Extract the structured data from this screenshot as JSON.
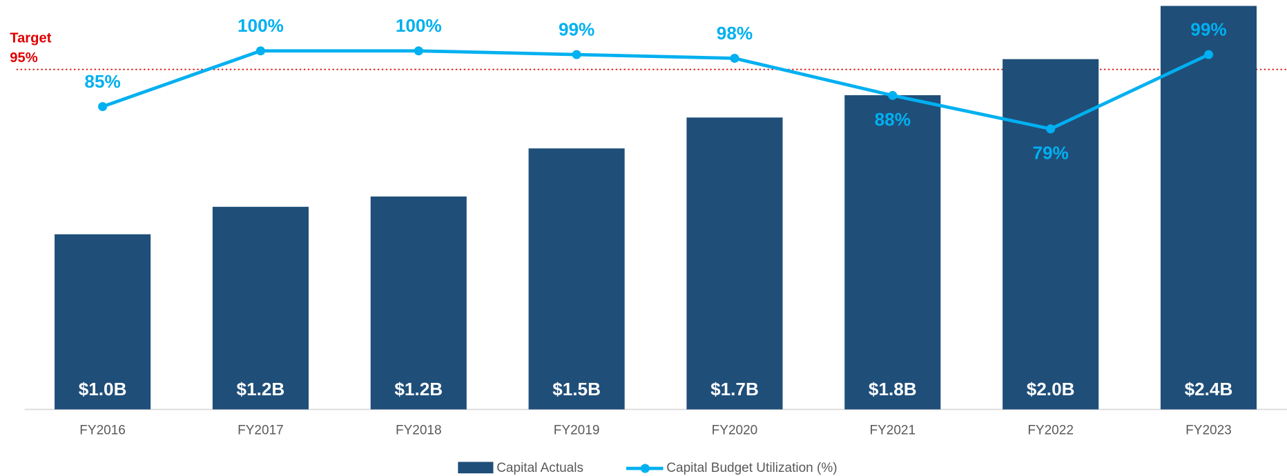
{
  "chart_data": {
    "type": "bar_line",
    "categories": [
      "FY2016",
      "FY2017",
      "FY2018",
      "FY2019",
      "FY2020",
      "FY2021",
      "FY2022",
      "FY2023"
    ],
    "series": [
      {
        "name": "Capital Actuals",
        "type": "bar",
        "color": "#1f4e79",
        "values": [
          1.02,
          1.18,
          1.24,
          1.52,
          1.7,
          1.83,
          2.04,
          2.35
        ],
        "value_labels": [
          "$1.0B",
          "$1.2B",
          "$1.2B",
          "$1.5B",
          "$1.7B",
          "$1.8B",
          "$2.0B",
          "$2.4B"
        ]
      },
      {
        "name": "Capital Budget Utilization (%)",
        "type": "line",
        "axis": "y2",
        "color": "#00b0f0",
        "values": [
          85,
          100,
          100,
          99,
          98,
          88,
          79,
          99
        ],
        "value_labels": [
          "85%",
          "100%",
          "100%",
          "99%",
          "98%",
          "88%",
          "79%",
          "99%"
        ]
      }
    ],
    "ylim": [
      0,
      2.35
    ],
    "y2lim": [
      3.5,
      112.1
    ],
    "target": {
      "label": "Target",
      "value": 95,
      "value_label": "95%",
      "color": "#e00000"
    }
  }
}
